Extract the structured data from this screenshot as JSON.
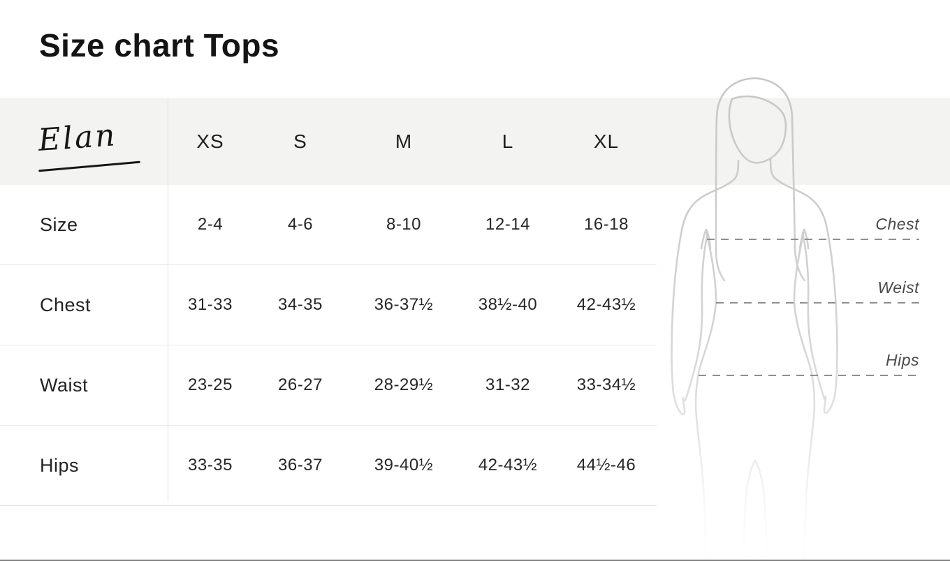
{
  "page": {
    "title": "Size chart Tops"
  },
  "brand": {
    "logo_text": "Elan"
  },
  "size_table": {
    "columns": [
      "XS",
      "S",
      "M",
      "L",
      "XL"
    ],
    "rows": [
      {
        "label": "Size",
        "values": [
          "2-4",
          "4-6",
          "8-10",
          "12-14",
          "16-18"
        ]
      },
      {
        "label": "Chest",
        "values": [
          "31-33",
          "34-35",
          "36-37½",
          "38½-40",
          "42-43½"
        ]
      },
      {
        "label": "Waist",
        "values": [
          "23-25",
          "26-27",
          "28-29½",
          "31-32",
          "33-34½"
        ]
      },
      {
        "label": "Hips",
        "values": [
          "33-35",
          "36-37",
          "39-40½",
          "42-43½",
          "44½-46"
        ]
      }
    ]
  },
  "figure": {
    "silhouette": "female-body-outline",
    "annotations": [
      {
        "label": "Chest"
      },
      {
        "label": "Weist"
      },
      {
        "label": "Hips"
      }
    ]
  },
  "chart_data": {
    "type": "table",
    "title": "Size chart Tops",
    "columns": [
      "",
      "XS",
      "S",
      "M",
      "L",
      "XL"
    ],
    "rows": [
      [
        "Size",
        "2-4",
        "4-6",
        "8-10",
        "12-14",
        "16-18"
      ],
      [
        "Chest",
        "31-33",
        "34-35",
        "36-37½",
        "38½-40",
        "42-43½"
      ],
      [
        "Waist",
        "23-25",
        "26-27",
        "28-29½",
        "31-32",
        "33-34½"
      ],
      [
        "Hips",
        "33-35",
        "36-37",
        "39-40½",
        "42-43½",
        "44½-46"
      ]
    ]
  },
  "colors": {
    "header_band": "#f3f3f2",
    "row_border": "#e6e6e6",
    "text": "#1e1e1e",
    "annotation_text": "#4a4a4a",
    "dashed_line": "#8f8f8f",
    "silhouette_stroke": "#c9c9c9"
  }
}
